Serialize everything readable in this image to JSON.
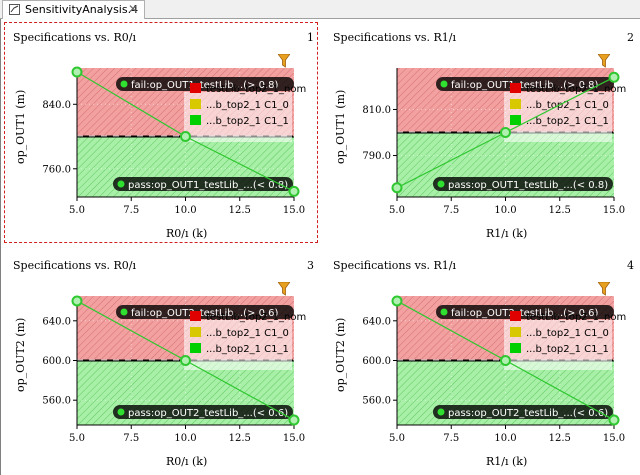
{
  "tab": {
    "label": "SensitivityAnalysis.4",
    "close": "✕",
    "icon": "chart-doc-icon"
  },
  "colors": {
    "fail_band": "#f2a0a0",
    "pass_band": "#a8f0a8",
    "line": "#30c830",
    "spec_line": "#000000",
    "legend_red": "#e00000",
    "legend_yellow": "#d8c800",
    "legend_green": "#00d000",
    "selection": "#d02020"
  },
  "legend": [
    {
      "color": "#e00000",
      "text": "testLib_top2_1_nom"
    },
    {
      "color": "#d8c800",
      "text": "...b_top2_1 C1_0"
    },
    {
      "color": "#00d000",
      "text": "...b_top2_1 C1_1"
    }
  ],
  "chart_data": [
    {
      "type": "line",
      "title": "Specifications vs. R0/ı",
      "index": "1",
      "selected": true,
      "xlabel": "R0/ı (k)",
      "ylabel": "op_OUT1 (m)",
      "x": [
        5.0,
        10.0,
        15.0
      ],
      "y": [
        880,
        800,
        732
      ],
      "xlim": [
        5.0,
        15.0
      ],
      "ylim": [
        725,
        885
      ],
      "xticks": [
        "5.0",
        "7.5",
        "10.0",
        "12.5",
        "15.0"
      ],
      "yticks": [
        "760.0",
        "840.0"
      ],
      "spec_value": 800,
      "fail_side": "above",
      "fail_label": "fail:op_OUT1_testLib...(> 0.8)",
      "pass_label": "pass:op_OUT1_testLib_...(< 0.8)"
    },
    {
      "type": "line",
      "title": "Specifications vs. R1/ı",
      "index": "2",
      "selected": false,
      "xlabel": "R1/ı (k)",
      "ylabel": "op_OUT1 (m)",
      "x": [
        5.0,
        10.0,
        15.0
      ],
      "y": [
        776,
        800,
        824
      ],
      "xlim": [
        5.0,
        15.0
      ],
      "ylim": [
        772,
        828
      ],
      "xticks": [
        "5.0",
        "7.5",
        "10.0",
        "12.5",
        "15.0"
      ],
      "yticks": [
        "790.0",
        "810.0"
      ],
      "spec_value": 800,
      "fail_side": "above",
      "fail_label": "fail:op_OUT1_testLib...(> 0.8)",
      "pass_label": "pass:op_OUT1_testLib_...(< 0.8)"
    },
    {
      "type": "line",
      "title": "Specifications vs. R0/ı",
      "index": "3",
      "selected": false,
      "xlabel": "R0/ı (k)",
      "ylabel": "op_OUT2 (m)",
      "x": [
        5.0,
        10.0,
        15.0
      ],
      "y": [
        660,
        600,
        540
      ],
      "xlim": [
        5.0,
        15.0
      ],
      "ylim": [
        535,
        665
      ],
      "xticks": [
        "5.0",
        "7.5",
        "10.0",
        "12.5",
        "15.0"
      ],
      "yticks": [
        "560.0",
        "600.0",
        "640.0"
      ],
      "spec_value": 600,
      "fail_side": "above",
      "fail_label": "fail:op_OUT2_testLib...(> 0.6)",
      "pass_label": "pass:op_OUT2_testLib_...(< 0.6)"
    },
    {
      "type": "line",
      "title": "Specifications vs. R1/ı",
      "index": "4",
      "selected": false,
      "xlabel": "R1/ı (k)",
      "ylabel": "op_OUT2 (m)",
      "x": [
        5.0,
        10.0,
        15.0
      ],
      "y": [
        660,
        600,
        540
      ],
      "xlim": [
        5.0,
        15.0
      ],
      "ylim": [
        535,
        665
      ],
      "xticks": [
        "5.0",
        "7.5",
        "10.0",
        "12.5",
        "15.0"
      ],
      "yticks": [
        "560.0",
        "600.0",
        "640.0"
      ],
      "spec_value": 600,
      "fail_side": "above",
      "fail_label": "fail:op_OUT2_testLib...(> 0.6)",
      "pass_label": "pass:op_OUT2_testLib_...(< 0.6)"
    }
  ]
}
